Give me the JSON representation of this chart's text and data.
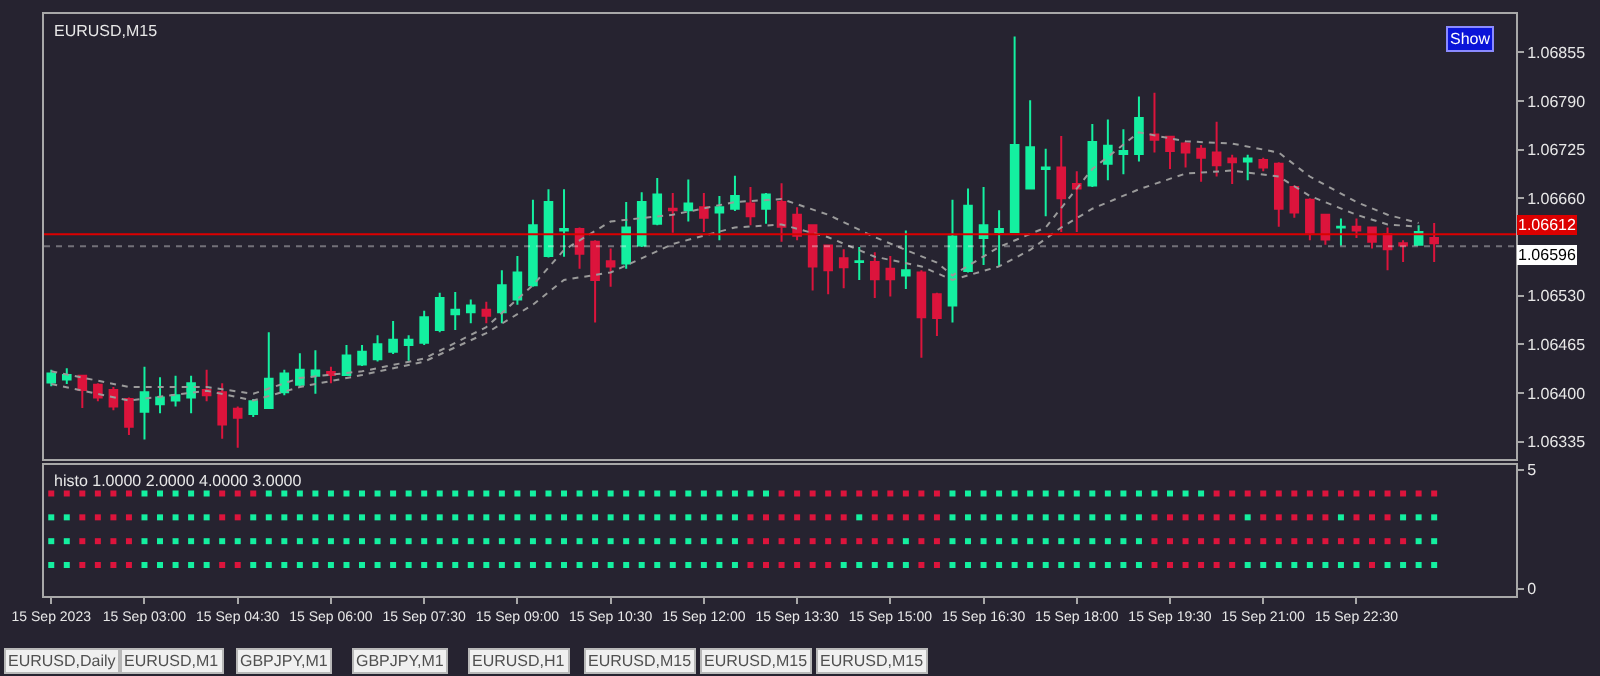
{
  "chart_data": [
    {
      "type": "candlestick",
      "title": "EURUSD,M15",
      "tick_labels": "y",
      "x": [
        "2023-09-15T01:30",
        "2023-09-15T01:45",
        "2023-09-15T02:00",
        "2023-09-15T02:15",
        "2023-09-15T02:30",
        "2023-09-15T02:45",
        "2023-09-15T03:00",
        "2023-09-15T03:15",
        "2023-09-15T03:30",
        "2023-09-15T03:45",
        "2023-09-15T04:00",
        "2023-09-15T04:15",
        "2023-09-15T04:30",
        "2023-09-15T04:45",
        "2023-09-15T05:00",
        "2023-09-15T05:15",
        "2023-09-15T05:30",
        "2023-09-15T05:45",
        "2023-09-15T06:00",
        "2023-09-15T06:15",
        "2023-09-15T06:30",
        "2023-09-15T06:45",
        "2023-09-15T07:00",
        "2023-09-15T07:15",
        "2023-09-15T07:30",
        "2023-09-15T07:45",
        "2023-09-15T08:00",
        "2023-09-15T08:15",
        "2023-09-15T08:30",
        "2023-09-15T08:45",
        "2023-09-15T09:00",
        "2023-09-15T09:15",
        "2023-09-15T09:30",
        "2023-09-15T09:45",
        "2023-09-15T10:00",
        "2023-09-15T10:15",
        "2023-09-15T10:30",
        "2023-09-15T10:45",
        "2023-09-15T11:00",
        "2023-09-15T11:15",
        "2023-09-15T11:30",
        "2023-09-15T11:45",
        "2023-09-15T12:00",
        "2023-09-15T12:15",
        "2023-09-15T12:30",
        "2023-09-15T12:45",
        "2023-09-15T13:00",
        "2023-09-15T13:15",
        "2023-09-15T13:30",
        "2023-09-15T13:45",
        "2023-09-15T14:00",
        "2023-09-15T14:15",
        "2023-09-15T14:30",
        "2023-09-15T14:45",
        "2023-09-15T15:00",
        "2023-09-15T15:15",
        "2023-09-15T15:30",
        "2023-09-15T15:45",
        "2023-09-15T16:00",
        "2023-09-15T16:15",
        "2023-09-15T16:30",
        "2023-09-15T16:45",
        "2023-09-15T17:00",
        "2023-09-15T17:15",
        "2023-09-15T17:30",
        "2023-09-15T17:45",
        "2023-09-15T18:00",
        "2023-09-15T18:15",
        "2023-09-15T18:30",
        "2023-09-15T18:45",
        "2023-09-15T19:00",
        "2023-09-15T19:15",
        "2023-09-15T19:30",
        "2023-09-15T19:45",
        "2023-09-15T20:00",
        "2023-09-15T20:15",
        "2023-09-15T20:30",
        "2023-09-15T20:45",
        "2023-09-15T21:00",
        "2023-09-15T21:15",
        "2023-09-15T21:30",
        "2023-09-15T21:45",
        "2023-09-15T22:00",
        "2023-09-15T22:15",
        "2023-09-15T22:30",
        "2023-09-15T22:45",
        "2023-09-15T23:00",
        "2023-09-15T23:15",
        "2023-09-15T23:30",
        "2023-09-15T23:45"
      ],
      "ohlc": [
        [
          1.06414,
          1.06431,
          1.06409,
          1.06426
        ],
        [
          1.06418,
          1.06433,
          1.06412,
          1.06424
        ],
        [
          1.06423,
          1.06424,
          1.0638,
          1.06404
        ],
        [
          1.06411,
          1.06413,
          1.06389,
          1.06394
        ],
        [
          1.06404,
          1.06408,
          1.06377,
          1.06382
        ],
        [
          1.06392,
          1.06394,
          1.06344,
          1.06355
        ],
        [
          1.06375,
          1.06435,
          1.06338,
          1.06401
        ],
        [
          1.06385,
          1.06421,
          1.06373,
          1.06394
        ],
        [
          1.0639,
          1.06423,
          1.06382,
          1.06397
        ],
        [
          1.06394,
          1.06423,
          1.06373,
          1.06413
        ],
        [
          1.06404,
          1.06431,
          1.06389,
          1.06397
        ],
        [
          1.06401,
          1.06413,
          1.06339,
          1.06358
        ],
        [
          1.06379,
          1.06382,
          1.06327,
          1.06367
        ],
        [
          1.06372,
          1.06392,
          1.06368,
          1.06389
        ],
        [
          1.0638,
          1.06481,
          1.06379,
          1.06419
        ],
        [
          1.06401,
          1.06431,
          1.06397,
          1.06426
        ],
        [
          1.06411,
          1.06453,
          1.06409,
          1.06431
        ],
        [
          1.06423,
          1.06457,
          1.06399,
          1.0643
        ],
        [
          1.06428,
          1.06435,
          1.06413,
          1.06424
        ],
        [
          1.06424,
          1.06464,
          1.06423,
          1.0645
        ],
        [
          1.06438,
          1.06464,
          1.06436,
          1.06455
        ],
        [
          1.06445,
          1.06477,
          1.06442,
          1.06465
        ],
        [
          1.06455,
          1.06496,
          1.06452,
          1.06471
        ],
        [
          1.06464,
          1.06477,
          1.06443,
          1.06471
        ],
        [
          1.06467,
          1.0651,
          1.06464,
          1.06501
        ],
        [
          1.06484,
          1.06534,
          1.06481,
          1.06527
        ],
        [
          1.06505,
          1.06535,
          1.06484,
          1.06511
        ],
        [
          1.06508,
          1.06525,
          1.06493,
          1.06517
        ],
        [
          1.06511,
          1.06522,
          1.06493,
          1.06503
        ],
        [
          1.06508,
          1.06564,
          1.06493,
          1.06544
        ],
        [
          1.06525,
          1.06583,
          1.06518,
          1.06561
        ],
        [
          1.06544,
          1.06658,
          1.06542,
          1.06624
        ],
        [
          1.06583,
          1.06672,
          1.06581,
          1.06655
        ],
        [
          1.06617,
          1.06672,
          1.06582,
          1.06619
        ],
        [
          1.06619,
          1.06621,
          1.06566,
          1.06586
        ],
        [
          1.06602,
          1.06604,
          1.06494,
          1.06551
        ],
        [
          1.06576,
          1.06593,
          1.06542,
          1.06569
        ],
        [
          1.06573,
          1.06655,
          1.06566,
          1.06621
        ],
        [
          1.06597,
          1.06668,
          1.06595,
          1.06655
        ],
        [
          1.06626,
          1.06687,
          1.06624,
          1.06665
        ],
        [
          1.06646,
          1.06667,
          1.06614,
          1.06644
        ],
        [
          1.06644,
          1.06685,
          1.06629,
          1.06653
        ],
        [
          1.06648,
          1.06667,
          1.06615,
          1.06634
        ],
        [
          1.06641,
          1.06663,
          1.06604,
          1.06648
        ],
        [
          1.06646,
          1.0669,
          1.06643,
          1.06663
        ],
        [
          1.06653,
          1.06675,
          1.06624,
          1.06636
        ],
        [
          1.06646,
          1.06667,
          1.06626,
          1.06665
        ],
        [
          1.06655,
          1.0668,
          1.06602,
          1.06622
        ],
        [
          1.06638,
          1.06648,
          1.06604,
          1.0661
        ],
        [
          1.06624,
          1.06624,
          1.06537,
          1.06569
        ],
        [
          1.06597,
          1.06598,
          1.06532,
          1.06564
        ],
        [
          1.0658,
          1.06592,
          1.0654,
          1.06568
        ],
        [
          1.06575,
          1.06595,
          1.06551,
          1.06576
        ],
        [
          1.06575,
          1.06588,
          1.06527,
          1.06552
        ],
        [
          1.06566,
          1.06583,
          1.06529,
          1.06552
        ],
        [
          1.06557,
          1.06617,
          1.06539,
          1.06564
        ],
        [
          1.06561,
          1.06564,
          1.06447,
          1.06501
        ],
        [
          1.06532,
          1.06534,
          1.06476,
          1.065
        ],
        [
          1.06517,
          1.06658,
          1.06494,
          1.06609
        ],
        [
          1.06563,
          1.06673,
          1.06561,
          1.0665
        ],
        [
          1.06607,
          1.06675,
          1.06571,
          1.06624
        ],
        [
          1.06615,
          1.06644,
          1.06569,
          1.06619
        ],
        [
          1.06615,
          1.06876,
          1.06614,
          1.06731
        ],
        [
          1.06673,
          1.06791,
          1.06672,
          1.06728
        ],
        [
          1.06699,
          1.06726,
          1.06636,
          1.06701
        ],
        [
          1.06701,
          1.06743,
          1.06615,
          1.0666
        ],
        [
          1.06679,
          1.06696,
          1.06615,
          1.06673
        ],
        [
          1.06677,
          1.06759,
          1.06675,
          1.06735
        ],
        [
          1.06706,
          1.06765,
          1.06684,
          1.0673
        ],
        [
          1.06719,
          1.06752,
          1.06692,
          1.06723
        ],
        [
          1.06719,
          1.06796,
          1.06709,
          1.06767
        ],
        [
          1.06745,
          1.06801,
          1.06721,
          1.06738
        ],
        [
          1.06742,
          1.06743,
          1.06699,
          1.06723
        ],
        [
          1.06733,
          1.06735,
          1.06701,
          1.06721
        ],
        [
          1.06726,
          1.06731,
          1.06682,
          1.06714
        ],
        [
          1.06721,
          1.06762,
          1.06689,
          1.06704
        ],
        [
          1.06713,
          1.06718,
          1.06679,
          1.06708
        ],
        [
          1.06709,
          1.06718,
          1.06684,
          1.06713
        ],
        [
          1.06711,
          1.06714,
          1.06696,
          1.06701
        ],
        [
          1.06706,
          1.06708,
          1.06622,
          1.06646
        ],
        [
          1.06675,
          1.06677,
          1.06634,
          1.06641
        ],
        [
          1.06658,
          1.0666,
          1.06604,
          1.06614
        ],
        [
          1.06638,
          1.06639,
          1.06598,
          1.06605
        ],
        [
          1.06621,
          1.06633,
          1.06597,
          1.06622
        ],
        [
          1.06622,
          1.06633,
          1.06607,
          1.06617
        ],
        [
          1.06621,
          1.06622,
          1.06593,
          1.06602
        ],
        [
          1.06612,
          1.06621,
          1.06564,
          1.06592
        ],
        [
          1.066,
          1.06604,
          1.06575,
          1.06597
        ],
        [
          1.06598,
          1.06624,
          1.06597,
          1.06615
        ],
        [
          1.06607,
          1.06627,
          1.06575,
          1.066
        ]
      ],
      "colors": [
        "#14f0a0",
        "#14f0a0",
        "#dc143c",
        "#dc143c",
        "#dc143c",
        "#dc143c",
        "#14f0a0",
        "#14f0a0",
        "#14f0a0",
        "#14f0a0",
        "#dc143c",
        "#dc143c",
        "#dc143c",
        "#14f0a0",
        "#14f0a0",
        "#14f0a0",
        "#14f0a0",
        "#14f0a0",
        "#dc143c",
        "#14f0a0",
        "#14f0a0",
        "#14f0a0",
        "#14f0a0",
        "#14f0a0",
        "#14f0a0",
        "#14f0a0",
        "#14f0a0",
        "#14f0a0",
        "#dc143c",
        "#14f0a0",
        "#14f0a0",
        "#14f0a0",
        "#14f0a0",
        "#14f0a0",
        "#dc143c",
        "#dc143c",
        "#dc143c",
        "#14f0a0",
        "#14f0a0",
        "#14f0a0",
        "#dc143c",
        "#14f0a0",
        "#dc143c",
        "#14f0a0",
        "#14f0a0",
        "#dc143c",
        "#14f0a0",
        "#dc143c",
        "#dc143c",
        "#dc143c",
        "#dc143c",
        "#dc143c",
        "#14f0a0",
        "#dc143c",
        "#dc143c",
        "#14f0a0",
        "#dc143c",
        "#dc143c",
        "#14f0a0",
        "#14f0a0",
        "#14f0a0",
        "#14f0a0",
        "#14f0a0",
        "#14f0a0",
        "#14f0a0",
        "#dc143c",
        "#dc143c",
        "#14f0a0",
        "#14f0a0",
        "#14f0a0",
        "#14f0a0",
        "#dc143c",
        "#dc143c",
        "#dc143c",
        "#dc143c",
        "#dc143c",
        "#dc143c",
        "#14f0a0",
        "#dc143c",
        "#dc143c",
        "#dc143c",
        "#dc143c",
        "#dc143c",
        "#14f0a0",
        "#dc143c",
        "#dc143c",
        "#dc143c",
        "#dc143c",
        "#14f0a0",
        "#dc143c"
      ],
      "series": [
        {
          "type": "line",
          "color": "#9a9a9a",
          "line_style": "dotted",
          "x": [
            "2023-09-15T01:30",
            "2023-09-15T02:45",
            "2023-09-15T04:00",
            "2023-09-15T04:45",
            "2023-09-15T05:30",
            "2023-09-15T06:30",
            "2023-09-15T07:30",
            "2023-09-15T08:30",
            "2023-09-15T09:15",
            "2023-09-15T09:45",
            "2023-09-15T10:30",
            "2023-09-15T11:30",
            "2023-09-15T12:30",
            "2023-09-15T13:15",
            "2023-09-15T14:00",
            "2023-09-15T14:45",
            "2023-09-15T15:45",
            "2023-09-15T16:00",
            "2023-09-15T16:45",
            "2023-09-15T17:30",
            "2023-09-15T18:15",
            "2023-09-15T19:00",
            "2023-09-15T19:45",
            "2023-09-15T20:30",
            "2023-09-15T21:15",
            "2023-09-15T21:45",
            "2023-09-15T22:30",
            "2023-09-15T23:00",
            "2023-09-15T23:30"
          ],
          "values": [
            1.06429,
            1.06408,
            1.06408,
            1.06399,
            1.0642,
            1.06429,
            1.06446,
            1.06488,
            1.06544,
            1.06591,
            1.06629,
            1.06638,
            1.06655,
            1.06659,
            1.06638,
            1.06608,
            1.06574,
            1.06557,
            1.06595,
            1.06621,
            1.06699,
            1.06748,
            1.06736,
            1.06733,
            1.06721,
            1.06689,
            1.06655,
            1.06638,
            1.06627
          ]
        },
        {
          "type": "line",
          "color": "#9a9a9a",
          "line_style": "dotted",
          "x": [
            "2023-09-15T01:30",
            "2023-09-15T02:45",
            "2023-09-15T04:00",
            "2023-09-15T04:45",
            "2023-09-15T05:30",
            "2023-09-15T06:30",
            "2023-09-15T07:30",
            "2023-09-15T08:30",
            "2023-09-15T09:15",
            "2023-09-15T09:45",
            "2023-09-15T10:30",
            "2023-09-15T11:30",
            "2023-09-15T12:30",
            "2023-09-15T13:15",
            "2023-09-15T14:00",
            "2023-09-15T14:45",
            "2023-09-15T15:30",
            "2023-09-15T16:00",
            "2023-09-15T16:45",
            "2023-09-15T17:15",
            "2023-09-15T17:45",
            "2023-09-15T18:15",
            "2023-09-15T19:00",
            "2023-09-15T19:45",
            "2023-09-15T20:30",
            "2023-09-15T21:15",
            "2023-09-15T21:45",
            "2023-09-15T22:30",
            "2023-09-15T23:00",
            "2023-09-15T23:30"
          ],
          "values": [
            1.06412,
            1.0639,
            1.06403,
            1.0639,
            1.06408,
            1.06424,
            1.06442,
            1.0648,
            1.06518,
            1.06551,
            1.06561,
            1.06599,
            1.06621,
            1.06625,
            1.06608,
            1.06582,
            1.06569,
            1.06551,
            1.06569,
            1.06591,
            1.06621,
            1.06646,
            1.06672,
            1.06693,
            1.06697,
            1.06689,
            1.06663,
            1.06638,
            1.06625,
            1.06622
          ]
        }
      ],
      "xlim": [
        "2023-09-15T01:23",
        "2023-09-16T01:04"
      ],
      "ylim": [
        1.06312,
        1.06906
      ],
      "yticks": [
        1.06335,
        {
          "value": 1.064,
          "label": "1.06400"
        },
        1.06465,
        {
          "value": 1.0653,
          "label": "1.06530"
        },
        {
          "value": 1.0666,
          "label": "1.06660"
        },
        1.06725,
        {
          "value": 1.0679,
          "label": "1.06790"
        },
        1.06855
      ],
      "ref_lines": [
        {
          "axis": "y",
          "value": 1.06612,
          "label": "1.06612",
          "color": "#dc0000"
        },
        {
          "axis": "y",
          "value": 1.06596,
          "label": "1.06596",
          "color": "#ffffff",
          "line_style": "dotted"
        }
      ],
      "annotations": [
        "Show"
      ]
    },
    {
      "type": "scatter",
      "title": "histo 1.0000 2.0000 4.0000 3.0000",
      "marker": "square",
      "x": [
        "2023-09-15T01:30",
        "2023-09-15T01:45",
        "2023-09-15T02:00",
        "2023-09-15T02:15",
        "2023-09-15T02:30",
        "2023-09-15T02:45",
        "2023-09-15T03:00",
        "2023-09-15T03:15",
        "2023-09-15T03:30",
        "2023-09-15T03:45",
        "2023-09-15T04:00",
        "2023-09-15T04:15",
        "2023-09-15T04:30",
        "2023-09-15T04:45",
        "2023-09-15T05:00",
        "2023-09-15T05:15",
        "2023-09-15T05:30",
        "2023-09-15T05:45",
        "2023-09-15T06:00",
        "2023-09-15T06:15",
        "2023-09-15T06:30",
        "2023-09-15T06:45",
        "2023-09-15T07:00",
        "2023-09-15T07:15",
        "2023-09-15T07:30",
        "2023-09-15T07:45",
        "2023-09-15T08:00",
        "2023-09-15T08:15",
        "2023-09-15T08:30",
        "2023-09-15T08:45",
        "2023-09-15T09:00",
        "2023-09-15T09:15",
        "2023-09-15T09:30",
        "2023-09-15T09:45",
        "2023-09-15T10:00",
        "2023-09-15T10:15",
        "2023-09-15T10:30",
        "2023-09-15T10:45",
        "2023-09-15T11:00",
        "2023-09-15T11:15",
        "2023-09-15T11:30",
        "2023-09-15T11:45",
        "2023-09-15T12:00",
        "2023-09-15T12:15",
        "2023-09-15T12:30",
        "2023-09-15T12:45",
        "2023-09-15T13:00",
        "2023-09-15T13:15",
        "2023-09-15T13:30",
        "2023-09-15T13:45",
        "2023-09-15T14:00",
        "2023-09-15T14:15",
        "2023-09-15T14:30",
        "2023-09-15T14:45",
        "2023-09-15T15:00",
        "2023-09-15T15:15",
        "2023-09-15T15:30",
        "2023-09-15T15:45",
        "2023-09-15T16:00",
        "2023-09-15T16:15",
        "2023-09-15T16:30",
        "2023-09-15T16:45",
        "2023-09-15T17:00",
        "2023-09-15T17:15",
        "2023-09-15T17:30",
        "2023-09-15T17:45",
        "2023-09-15T18:00",
        "2023-09-15T18:15",
        "2023-09-15T18:30",
        "2023-09-15T18:45",
        "2023-09-15T19:00",
        "2023-09-15T19:15",
        "2023-09-15T19:30",
        "2023-09-15T19:45",
        "2023-09-15T20:00",
        "2023-09-15T20:15",
        "2023-09-15T20:30",
        "2023-09-15T20:45",
        "2023-09-15T21:00",
        "2023-09-15T21:15",
        "2023-09-15T21:30",
        "2023-09-15T21:45",
        "2023-09-15T22:00",
        "2023-09-15T22:15",
        "2023-09-15T22:30",
        "2023-09-15T22:45",
        "2023-09-15T23:00",
        "2023-09-15T23:15",
        "2023-09-15T23:30",
        "2023-09-15T23:45"
      ],
      "series": [
        {
          "values": [
            4,
            4,
            4,
            4,
            4,
            4,
            4,
            4,
            4,
            4,
            4,
            4,
            4,
            4,
            4,
            4,
            4,
            4,
            4,
            4,
            4,
            4,
            4,
            4,
            4,
            4,
            4,
            4,
            4,
            4,
            4,
            4,
            4,
            4,
            4,
            4,
            4,
            4,
            4,
            4,
            4,
            4,
            4,
            4,
            4,
            4,
            4,
            4,
            4,
            4,
            4,
            4,
            4,
            4,
            4,
            4,
            4,
            4,
            4,
            4,
            4,
            4,
            4,
            4,
            4,
            4,
            4,
            4,
            4,
            4,
            4,
            4,
            4,
            4,
            4,
            4,
            4,
            4,
            4,
            4,
            4,
            4,
            4,
            4,
            4,
            4,
            4,
            4,
            4,
            4
          ],
          "colors": [
            "#dc143c",
            "#dc143c",
            "#dc143c",
            "#dc143c",
            "#dc143c",
            "#dc143c",
            "#14f0a0",
            "#14f0a0",
            "#14f0a0",
            "#14f0a0",
            "#14f0a0",
            "#dc143c",
            "#dc143c",
            "#dc143c",
            "#14f0a0",
            "#14f0a0",
            "#14f0a0",
            "#14f0a0",
            "#14f0a0",
            "#14f0a0",
            "#14f0a0",
            "#14f0a0",
            "#14f0a0",
            "#14f0a0",
            "#14f0a0",
            "#14f0a0",
            "#14f0a0",
            "#14f0a0",
            "#14f0a0",
            "#14f0a0",
            "#14f0a0",
            "#14f0a0",
            "#14f0a0",
            "#14f0a0",
            "#14f0a0",
            "#14f0a0",
            "#14f0a0",
            "#14f0a0",
            "#14f0a0",
            "#14f0a0",
            "#14f0a0",
            "#14f0a0",
            "#14f0a0",
            "#14f0a0",
            "#14f0a0",
            "#14f0a0",
            "#14f0a0",
            "#dc143c",
            "#dc143c",
            "#dc143c",
            "#dc143c",
            "#dc143c",
            "#dc143c",
            "#dc143c",
            "#dc143c",
            "#dc143c",
            "#dc143c",
            "#dc143c",
            "#14f0a0",
            "#14f0a0",
            "#14f0a0",
            "#14f0a0",
            "#14f0a0",
            "#14f0a0",
            "#14f0a0",
            "#14f0a0",
            "#14f0a0",
            "#14f0a0",
            "#14f0a0",
            "#14f0a0",
            "#14f0a0",
            "#14f0a0",
            "#14f0a0",
            "#14f0a0",
            "#14f0a0",
            "#dc143c",
            "#dc143c",
            "#dc143c",
            "#dc143c",
            "#dc143c",
            "#dc143c",
            "#dc143c",
            "#dc143c",
            "#dc143c",
            "#dc143c",
            "#dc143c",
            "#dc143c",
            "#dc143c",
            "#dc143c",
            "#dc143c"
          ]
        },
        {
          "values": [
            3,
            3,
            3,
            3,
            3,
            3,
            3,
            3,
            3,
            3,
            3,
            3,
            3,
            3,
            3,
            3,
            3,
            3,
            3,
            3,
            3,
            3,
            3,
            3,
            3,
            3,
            3,
            3,
            3,
            3,
            3,
            3,
            3,
            3,
            3,
            3,
            3,
            3,
            3,
            3,
            3,
            3,
            3,
            3,
            3,
            3,
            3,
            3,
            3,
            3,
            3,
            3,
            3,
            3,
            3,
            3,
            3,
            3,
            3,
            3,
            3,
            3,
            3,
            3,
            3,
            3,
            3,
            3,
            3,
            3,
            3,
            3,
            3,
            3,
            3,
            3,
            3,
            3,
            3,
            3,
            3,
            3,
            3,
            3,
            3,
            3,
            3,
            3,
            3,
            3
          ],
          "colors": [
            "#14f0a0",
            "#14f0a0",
            "#dc143c",
            "#dc143c",
            "#dc143c",
            "#dc143c",
            "#14f0a0",
            "#14f0a0",
            "#14f0a0",
            "#14f0a0",
            "#14f0a0",
            "#dc143c",
            "#dc143c",
            "#14f0a0",
            "#14f0a0",
            "#14f0a0",
            "#14f0a0",
            "#14f0a0",
            "#14f0a0",
            "#14f0a0",
            "#14f0a0",
            "#14f0a0",
            "#14f0a0",
            "#14f0a0",
            "#14f0a0",
            "#14f0a0",
            "#14f0a0",
            "#14f0a0",
            "#14f0a0",
            "#14f0a0",
            "#14f0a0",
            "#14f0a0",
            "#14f0a0",
            "#14f0a0",
            "#14f0a0",
            "#14f0a0",
            "#14f0a0",
            "#14f0a0",
            "#14f0a0",
            "#14f0a0",
            "#14f0a0",
            "#14f0a0",
            "#14f0a0",
            "#14f0a0",
            "#14f0a0",
            "#dc143c",
            "#dc143c",
            "#dc143c",
            "#dc143c",
            "#dc143c",
            "#dc143c",
            "#dc143c",
            "#14f0a0",
            "#dc143c",
            "#dc143c",
            "#dc143c",
            "#dc143c",
            "#dc143c",
            "#14f0a0",
            "#14f0a0",
            "#14f0a0",
            "#14f0a0",
            "#14f0a0",
            "#14f0a0",
            "#14f0a0",
            "#14f0a0",
            "#14f0a0",
            "#14f0a0",
            "#14f0a0",
            "#14f0a0",
            "#14f0a0",
            "#dc143c",
            "#dc143c",
            "#dc143c",
            "#dc143c",
            "#dc143c",
            "#dc143c",
            "#14f0a0",
            "#dc143c",
            "#dc143c",
            "#dc143c",
            "#dc143c",
            "#dc143c",
            "#14f0a0",
            "#dc143c",
            "#dc143c",
            "#dc143c",
            "#14f0a0",
            "#14f0a0",
            "#14f0a0"
          ]
        },
        {
          "values": [
            2,
            2,
            2,
            2,
            2,
            2,
            2,
            2,
            2,
            2,
            2,
            2,
            2,
            2,
            2,
            2,
            2,
            2,
            2,
            2,
            2,
            2,
            2,
            2,
            2,
            2,
            2,
            2,
            2,
            2,
            2,
            2,
            2,
            2,
            2,
            2,
            2,
            2,
            2,
            2,
            2,
            2,
            2,
            2,
            2,
            2,
            2,
            2,
            2,
            2,
            2,
            2,
            2,
            2,
            2,
            2,
            2,
            2,
            2,
            2,
            2,
            2,
            2,
            2,
            2,
            2,
            2,
            2,
            2,
            2,
            2,
            2,
            2,
            2,
            2,
            2,
            2,
            2,
            2,
            2,
            2,
            2,
            2,
            2,
            2,
            2,
            2,
            2,
            2,
            2
          ],
          "colors": [
            "#14f0a0",
            "#14f0a0",
            "#dc143c",
            "#dc143c",
            "#dc143c",
            "#dc143c",
            "#14f0a0",
            "#14f0a0",
            "#14f0a0",
            "#14f0a0",
            "#14f0a0",
            "#14f0a0",
            "#14f0a0",
            "#14f0a0",
            "#14f0a0",
            "#14f0a0",
            "#14f0a0",
            "#14f0a0",
            "#14f0a0",
            "#14f0a0",
            "#14f0a0",
            "#14f0a0",
            "#14f0a0",
            "#14f0a0",
            "#14f0a0",
            "#14f0a0",
            "#14f0a0",
            "#14f0a0",
            "#14f0a0",
            "#14f0a0",
            "#14f0a0",
            "#14f0a0",
            "#14f0a0",
            "#14f0a0",
            "#14f0a0",
            "#14f0a0",
            "#14f0a0",
            "#14f0a0",
            "#14f0a0",
            "#14f0a0",
            "#14f0a0",
            "#14f0a0",
            "#14f0a0",
            "#14f0a0",
            "#14f0a0",
            "#dc143c",
            "#dc143c",
            "#dc143c",
            "#dc143c",
            "#dc143c",
            "#dc143c",
            "#dc143c",
            "#dc143c",
            "#dc143c",
            "#dc143c",
            "#14f0a0",
            "#dc143c",
            "#dc143c",
            "#14f0a0",
            "#14f0a0",
            "#14f0a0",
            "#14f0a0",
            "#14f0a0",
            "#14f0a0",
            "#14f0a0",
            "#14f0a0",
            "#14f0a0",
            "#14f0a0",
            "#14f0a0",
            "#14f0a0",
            "#14f0a0",
            "#dc143c",
            "#dc143c",
            "#dc143c",
            "#dc143c",
            "#dc143c",
            "#dc143c",
            "#dc143c",
            "#dc143c",
            "#dc143c",
            "#dc143c",
            "#dc143c",
            "#dc143c",
            "#dc143c",
            "#dc143c",
            "#dc143c",
            "#dc143c",
            "#dc143c",
            "#14f0a0",
            "#14f0a0"
          ]
        },
        {
          "values": [
            1,
            1,
            1,
            1,
            1,
            1,
            1,
            1,
            1,
            1,
            1,
            1,
            1,
            1,
            1,
            1,
            1,
            1,
            1,
            1,
            1,
            1,
            1,
            1,
            1,
            1,
            1,
            1,
            1,
            1,
            1,
            1,
            1,
            1,
            1,
            1,
            1,
            1,
            1,
            1,
            1,
            1,
            1,
            1,
            1,
            1,
            1,
            1,
            1,
            1,
            1,
            1,
            1,
            1,
            1,
            1,
            1,
            1,
            1,
            1,
            1,
            1,
            1,
            1,
            1,
            1,
            1,
            1,
            1,
            1,
            1,
            1,
            1,
            1,
            1,
            1,
            1,
            1,
            1,
            1,
            1,
            1,
            1,
            1,
            1,
            1,
            1,
            1,
            1,
            1
          ],
          "colors": [
            "#14f0a0",
            "#14f0a0",
            "#dc143c",
            "#dc143c",
            "#dc143c",
            "#dc143c",
            "#14f0a0",
            "#14f0a0",
            "#14f0a0",
            "#14f0a0",
            "#14f0a0",
            "#dc143c",
            "#dc143c",
            "#14f0a0",
            "#14f0a0",
            "#14f0a0",
            "#14f0a0",
            "#14f0a0",
            "#14f0a0",
            "#14f0a0",
            "#14f0a0",
            "#14f0a0",
            "#14f0a0",
            "#14f0a0",
            "#14f0a0",
            "#14f0a0",
            "#14f0a0",
            "#14f0a0",
            "#14f0a0",
            "#14f0a0",
            "#14f0a0",
            "#14f0a0",
            "#14f0a0",
            "#14f0a0",
            "#14f0a0",
            "#14f0a0",
            "#14f0a0",
            "#14f0a0",
            "#14f0a0",
            "#14f0a0",
            "#14f0a0",
            "#14f0a0",
            "#14f0a0",
            "#14f0a0",
            "#14f0a0",
            "#dc143c",
            "#dc143c",
            "#dc143c",
            "#dc143c",
            "#dc143c",
            "#dc143c",
            "#14f0a0",
            "#14f0a0",
            "#14f0a0",
            "#14f0a0",
            "#14f0a0",
            "#dc143c",
            "#dc143c",
            "#14f0a0",
            "#14f0a0",
            "#14f0a0",
            "#14f0a0",
            "#14f0a0",
            "#14f0a0",
            "#14f0a0",
            "#14f0a0",
            "#14f0a0",
            "#14f0a0",
            "#14f0a0",
            "#14f0a0",
            "#14f0a0",
            "#dc143c",
            "#dc143c",
            "#dc143c",
            "#dc143c",
            "#dc143c",
            "#dc143c",
            "#14f0a0",
            "#14f0a0",
            "#14f0a0",
            "#14f0a0",
            "#14f0a0",
            "#14f0a0",
            "#14f0a0",
            "#14f0a0",
            "#dc143c",
            "#14f0a0",
            "#14f0a0",
            "#14f0a0",
            "#14f0a0"
          ]
        }
      ],
      "xlim": [
        "2023-09-15T01:23",
        "2023-09-16T01:04"
      ],
      "xticks": [
        {
          "value": "2023-09-15T01:30",
          "label": "15 Sep 2023"
        },
        {
          "value": "2023-09-15T03:00",
          "label": "15 Sep 03:00"
        },
        {
          "value": "2023-09-15T04:30",
          "label": "15 Sep 04:30"
        },
        {
          "value": "2023-09-15T06:00",
          "label": "15 Sep 06:00"
        },
        {
          "value": "2023-09-15T07:30",
          "label": "15 Sep 07:30"
        },
        {
          "value": "2023-09-15T09:00",
          "label": "15 Sep 09:00"
        },
        {
          "value": "2023-09-15T10:30",
          "label": "15 Sep 10:30"
        },
        {
          "value": "2023-09-15T12:00",
          "label": "15 Sep 12:00"
        },
        {
          "value": "2023-09-15T13:30",
          "label": "15 Sep 13:30"
        },
        {
          "value": "2023-09-15T15:00",
          "label": "15 Sep 15:00"
        },
        {
          "value": "2023-09-15T16:30",
          "label": "15 Sep 16:30"
        },
        {
          "value": "2023-09-15T18:00",
          "label": "15 Sep 18:00"
        },
        {
          "value": "2023-09-15T19:30",
          "label": "15 Sep 19:30"
        },
        {
          "value": "2023-09-15T21:00",
          "label": "15 Sep 21:00"
        },
        {
          "value": "2023-09-15T22:30",
          "label": "15 Sep 22:30"
        }
      ],
      "ylim": [
        -0.3,
        5.2
      ],
      "yticks": [
        0,
        5
      ],
      "annotations": [
        "EURUSD,Daily",
        "EURUSD,M1",
        "GBPJPY,M1",
        "GBPJPY,M1",
        "EURUSD,H1",
        "EURUSD,M15",
        "EURUSD,M15",
        "EURUSD,M15"
      ]
    }
  ]
}
